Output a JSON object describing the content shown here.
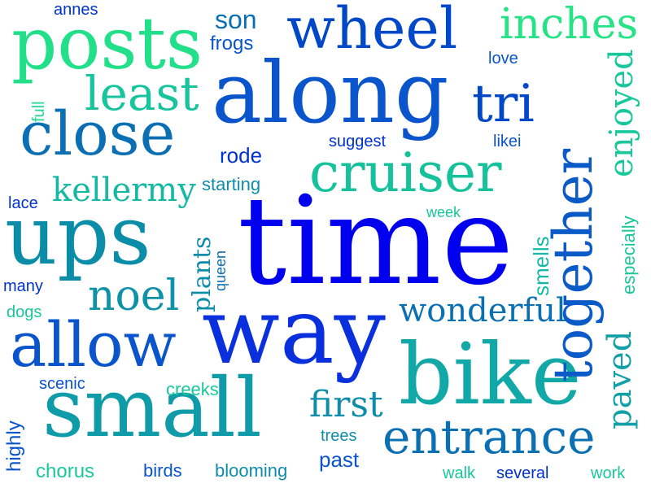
{
  "palette": {
    "blue": "#0000ee",
    "royal": "#0033cc",
    "mid": "#0a55cc",
    "steel": "#0b6fb4",
    "teal": "#11a0a8",
    "sea": "#17c2a0",
    "mint": "#22e08a"
  },
  "words": {
    "time": "time",
    "way": "way",
    "along": "along",
    "ups": "ups",
    "bike": "bike",
    "small": "small",
    "posts": "posts",
    "close": "close",
    "allow": "allow",
    "wheel": "wheel",
    "cruiser": "cruiser",
    "together": "together",
    "entrance": "entrance",
    "least": "least",
    "tri": "tri",
    "inches": "inches",
    "noel": "noel",
    "wonderful": "wonderful",
    "kellermy": "kellermy",
    "first": "first",
    "paved": "paved",
    "enjoyed": "enjoyed",
    "smells": "smells",
    "especially": "especially",
    "plants": "plants",
    "queen": "queen",
    "rode": "rode",
    "son": "son",
    "frogs": "frogs",
    "annes": "annes",
    "full": "full",
    "love": "love",
    "suggest": "suggest",
    "likei": "likei",
    "starting": "starting",
    "lace": "lace",
    "week": "week",
    "many": "many",
    "dogs": "dogs",
    "highly": "highly",
    "scenic": "scenic",
    "creeks": "creeks",
    "trees": "trees",
    "past": "past",
    "chorus": "chorus",
    "birds": "birds",
    "blooming": "blooming",
    "walk": "walk",
    "several": "several",
    "work": "work"
  }
}
